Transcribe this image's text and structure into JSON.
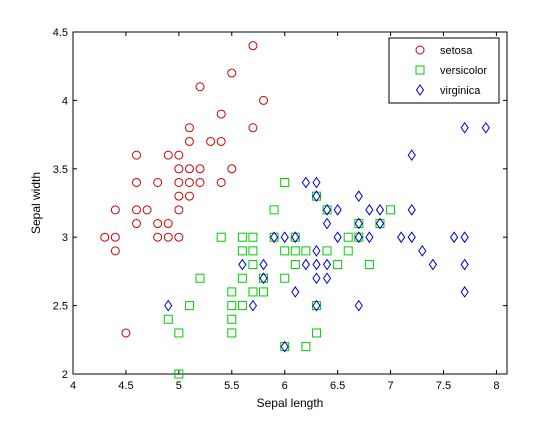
{
  "chart_data": {
    "type": "scatter",
    "title": "",
    "xlabel": "Sepal length",
    "ylabel": "Sepal width",
    "xlim": [
      4,
      8.1
    ],
    "ylim": [
      2,
      4.5
    ],
    "xticks": [
      "4",
      "4.5",
      "5",
      "5.5",
      "6",
      "6.5",
      "7",
      "7.5",
      "8"
    ],
    "yticks": [
      "2",
      "2.5",
      "3",
      "3.5",
      "4",
      "4.5"
    ],
    "grid": false,
    "legend_position": "top-right",
    "series": [
      {
        "name": "setosa",
        "marker": "circle",
        "color": "#cc0000",
        "points": [
          [
            4.3,
            3.0
          ],
          [
            4.4,
            2.9
          ],
          [
            4.4,
            3.0
          ],
          [
            4.4,
            3.2
          ],
          [
            4.5,
            2.3
          ],
          [
            4.6,
            3.1
          ],
          [
            4.6,
            3.2
          ],
          [
            4.6,
            3.4
          ],
          [
            4.6,
            3.6
          ],
          [
            4.7,
            3.2
          ],
          [
            4.8,
            3.0
          ],
          [
            4.8,
            3.1
          ],
          [
            4.8,
            3.4
          ],
          [
            4.9,
            3.0
          ],
          [
            4.9,
            3.1
          ],
          [
            4.9,
            3.6
          ],
          [
            5.0,
            3.0
          ],
          [
            5.0,
            3.2
          ],
          [
            5.0,
            3.3
          ],
          [
            5.0,
            3.4
          ],
          [
            5.0,
            3.5
          ],
          [
            5.0,
            3.6
          ],
          [
            5.1,
            3.3
          ],
          [
            5.1,
            3.4
          ],
          [
            5.1,
            3.5
          ],
          [
            5.1,
            3.7
          ],
          [
            5.1,
            3.8
          ],
          [
            5.2,
            3.4
          ],
          [
            5.2,
            3.5
          ],
          [
            5.2,
            4.1
          ],
          [
            5.3,
            3.7
          ],
          [
            5.4,
            3.4
          ],
          [
            5.4,
            3.7
          ],
          [
            5.4,
            3.9
          ],
          [
            5.5,
            3.5
          ],
          [
            5.5,
            4.2
          ],
          [
            5.7,
            3.8
          ],
          [
            5.7,
            4.4
          ],
          [
            5.8,
            4.0
          ]
        ]
      },
      {
        "name": "versicolor",
        "marker": "square",
        "color": "#00cc00",
        "points": [
          [
            4.9,
            2.4
          ],
          [
            5.0,
            2.0
          ],
          [
            5.0,
            2.3
          ],
          [
            5.1,
            2.5
          ],
          [
            5.2,
            2.7
          ],
          [
            5.4,
            3.0
          ],
          [
            5.5,
            2.3
          ],
          [
            5.5,
            2.4
          ],
          [
            5.5,
            2.5
          ],
          [
            5.5,
            2.6
          ],
          [
            5.6,
            2.5
          ],
          [
            5.6,
            2.7
          ],
          [
            5.6,
            2.9
          ],
          [
            5.6,
            3.0
          ],
          [
            5.7,
            2.6
          ],
          [
            5.7,
            2.8
          ],
          [
            5.7,
            2.9
          ],
          [
            5.7,
            3.0
          ],
          [
            5.8,
            2.6
          ],
          [
            5.8,
            2.7
          ],
          [
            5.9,
            3.0
          ],
          [
            5.9,
            3.2
          ],
          [
            6.0,
            2.2
          ],
          [
            6.0,
            2.7
          ],
          [
            6.0,
            2.9
          ],
          [
            6.0,
            3.4
          ],
          [
            6.1,
            2.8
          ],
          [
            6.1,
            2.9
          ],
          [
            6.1,
            3.0
          ],
          [
            6.2,
            2.2
          ],
          [
            6.2,
            2.9
          ],
          [
            6.3,
            2.3
          ],
          [
            6.3,
            2.5
          ],
          [
            6.3,
            3.3
          ],
          [
            6.4,
            2.9
          ],
          [
            6.4,
            3.2
          ],
          [
            6.5,
            2.8
          ],
          [
            6.6,
            2.9
          ],
          [
            6.6,
            3.0
          ],
          [
            6.7,
            3.0
          ],
          [
            6.7,
            3.1
          ],
          [
            6.8,
            2.8
          ],
          [
            6.9,
            3.1
          ],
          [
            7.0,
            3.2
          ]
        ]
      },
      {
        "name": "virginica",
        "marker": "diamond",
        "color": "#0000cc",
        "points": [
          [
            4.9,
            2.5
          ],
          [
            5.6,
            2.8
          ],
          [
            5.7,
            2.5
          ],
          [
            5.8,
            2.7
          ],
          [
            5.8,
            2.8
          ],
          [
            5.9,
            3.0
          ],
          [
            6.0,
            2.2
          ],
          [
            6.0,
            3.0
          ],
          [
            6.1,
            2.6
          ],
          [
            6.1,
            3.0
          ],
          [
            6.2,
            2.8
          ],
          [
            6.2,
            3.4
          ],
          [
            6.3,
            2.5
          ],
          [
            6.3,
            2.7
          ],
          [
            6.3,
            2.8
          ],
          [
            6.3,
            2.9
          ],
          [
            6.3,
            3.3
          ],
          [
            6.3,
            3.4
          ],
          [
            6.4,
            2.7
          ],
          [
            6.4,
            2.8
          ],
          [
            6.4,
            3.1
          ],
          [
            6.4,
            3.2
          ],
          [
            6.5,
            3.0
          ],
          [
            6.5,
            3.2
          ],
          [
            6.7,
            2.5
          ],
          [
            6.7,
            3.0
          ],
          [
            6.7,
            3.1
          ],
          [
            6.7,
            3.3
          ],
          [
            6.8,
            3.0
          ],
          [
            6.8,
            3.2
          ],
          [
            6.9,
            3.1
          ],
          [
            6.9,
            3.2
          ],
          [
            7.1,
            3.0
          ],
          [
            7.2,
            3.0
          ],
          [
            7.2,
            3.2
          ],
          [
            7.2,
            3.6
          ],
          [
            7.3,
            2.9
          ],
          [
            7.4,
            2.8
          ],
          [
            7.6,
            3.0
          ],
          [
            7.7,
            2.6
          ],
          [
            7.7,
            2.8
          ],
          [
            7.7,
            3.0
          ],
          [
            7.7,
            3.8
          ],
          [
            7.9,
            3.8
          ]
        ]
      }
    ]
  }
}
